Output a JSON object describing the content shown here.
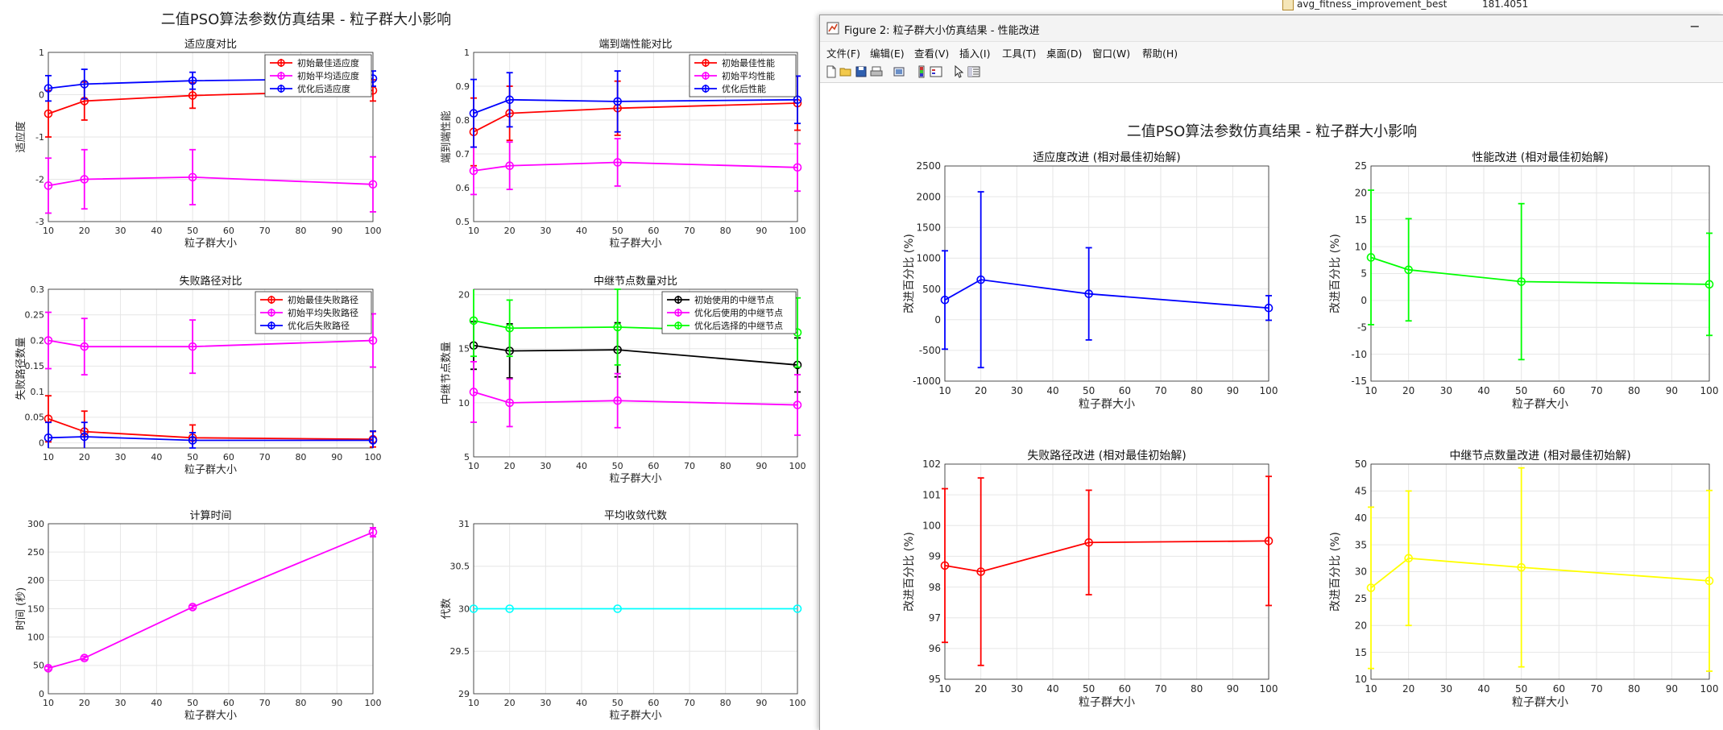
{
  "background_table": {
    "rows": [
      {
        "name": "avg_fitness_improvement_best",
        "value": "181.4051"
      }
    ]
  },
  "figure1": {
    "suptitle": "二值PSO算法参数仿真结果 - 粒子群大小影响",
    "xlabel": "粒子群大小",
    "panels": [
      {
        "title": "适应度对比",
        "ylabel": "适应度",
        "ylim": [
          -3,
          1
        ],
        "yticks": [
          -3,
          -2,
          -1,
          0,
          1
        ],
        "xticks": [
          10,
          20,
          30,
          40,
          50,
          60,
          70,
          80,
          90,
          100
        ],
        "legend": [
          "初始最佳适应度",
          "初始平均适应度",
          "优化后适应度"
        ],
        "series": [
          {
            "name": "初始最佳适应度",
            "color": "#ff0000",
            "x": [
              10,
              20,
              50,
              100
            ],
            "y": [
              -0.45,
              -0.15,
              -0.02,
              0.1
            ],
            "err": [
              0.55,
              0.45,
              0.3,
              0.25
            ]
          },
          {
            "name": "初始平均适应度",
            "color": "#ff00ff",
            "x": [
              10,
              20,
              50,
              100
            ],
            "y": [
              -2.15,
              -2.0,
              -1.95,
              -2.12
            ],
            "err": [
              0.65,
              0.7,
              0.65,
              0.65
            ]
          },
          {
            "name": "优化后适应度",
            "color": "#0000ff",
            "x": [
              10,
              20,
              50,
              100
            ],
            "y": [
              0.15,
              0.25,
              0.33,
              0.38
            ],
            "err": [
              0.3,
              0.35,
              0.2,
              0.18
            ]
          }
        ]
      },
      {
        "title": "端到端性能对比",
        "ylabel": "端到端性能",
        "ylim": [
          0.5,
          1
        ],
        "yticks": [
          0.5,
          0.6,
          0.7,
          0.8,
          0.9,
          1
        ],
        "xticks": [
          10,
          20,
          30,
          40,
          50,
          60,
          70,
          80,
          90,
          100
        ],
        "legend": [
          "初始最佳性能",
          "初始平均性能",
          "优化后性能"
        ],
        "series": [
          {
            "name": "初始最佳性能",
            "color": "#ff0000",
            "x": [
              10,
              20,
              50,
              100
            ],
            "y": [
              0.765,
              0.82,
              0.835,
              0.85
            ],
            "err": [
              0.1,
              0.08,
              0.08,
              0.08
            ]
          },
          {
            "name": "初始平均性能",
            "color": "#ff00ff",
            "x": [
              10,
              20,
              50,
              100
            ],
            "y": [
              0.65,
              0.665,
              0.675,
              0.66
            ],
            "err": [
              0.07,
              0.07,
              0.07,
              0.07
            ]
          },
          {
            "name": "优化后性能",
            "color": "#0000ff",
            "x": [
              10,
              20,
              50,
              100
            ],
            "y": [
              0.82,
              0.86,
              0.855,
              0.86
            ],
            "err": [
              0.1,
              0.08,
              0.09,
              0.07
            ]
          }
        ]
      },
      {
        "title": "失败路径对比",
        "ylabel": "失败路径数量",
        "ylim": [
          -0.01,
          0.3
        ],
        "yticks": [
          0,
          0.05,
          0.1,
          0.15,
          0.2,
          0.25,
          0.3
        ],
        "xticks": [
          10,
          20,
          30,
          40,
          50,
          60,
          70,
          80,
          90,
          100
        ],
        "legend": [
          "初始最佳失败路径",
          "初始平均失败路径",
          "优化后失败路径"
        ],
        "series": [
          {
            "name": "初始最佳失败路径",
            "color": "#ff0000",
            "x": [
              10,
              20,
              50,
              100
            ],
            "y": [
              0.047,
              0.022,
              0.01,
              0.007
            ],
            "err": [
              0.045,
              0.04,
              0.025,
              0.015
            ]
          },
          {
            "name": "初始平均失败路径",
            "color": "#ff00ff",
            "x": [
              10,
              20,
              50,
              100
            ],
            "y": [
              0.2,
              0.188,
              0.188,
              0.2
            ],
            "err": [
              0.055,
              0.055,
              0.052,
              0.052
            ]
          },
          {
            "name": "优化后失败路径",
            "color": "#0000ff",
            "x": [
              10,
              20,
              50,
              100
            ],
            "y": [
              0.01,
              0.012,
              0.005,
              0.005
            ],
            "err": [
              0.03,
              0.028,
              0.015,
              0.018
            ]
          }
        ]
      },
      {
        "title": "中继节点数量对比",
        "ylabel": "中继节点数量",
        "ylim": [
          5,
          20.5
        ],
        "yticks": [
          5,
          10,
          15,
          20
        ],
        "xticks": [
          10,
          20,
          30,
          40,
          50,
          60,
          70,
          80,
          90,
          100
        ],
        "legend": [
          "初始使用的中继节点",
          "优化后使用的中继节点",
          "优化后选择的中继节点"
        ],
        "series": [
          {
            "name": "初始使用的中继节点",
            "color": "#000000",
            "x": [
              10,
              20,
              50,
              100
            ],
            "y": [
              15.3,
              14.8,
              14.9,
              13.5
            ],
            "err": [
              2.2,
              2.5,
              2.5,
              2.5
            ]
          },
          {
            "name": "优化后使用的中继节点",
            "color": "#ff00ff",
            "x": [
              10,
              20,
              50,
              100
            ],
            "y": [
              11.0,
              10.0,
              10.2,
              9.8
            ],
            "err": [
              2.8,
              2.2,
              2.5,
              2.8
            ]
          },
          {
            "name": "优化后选择的中继节点",
            "color": "#00ff00",
            "x": [
              10,
              20,
              50,
              100
            ],
            "y": [
              17.6,
              16.9,
              17.0,
              16.5
            ],
            "err": [
              3.3,
              2.6,
              3.5,
              3.2
            ]
          }
        ]
      },
      {
        "title": "计算时间",
        "ylabel": "时间 (秒)",
        "ylim": [
          0,
          300
        ],
        "yticks": [
          0,
          50,
          100,
          150,
          200,
          250,
          300
        ],
        "xticks": [
          10,
          20,
          30,
          40,
          50,
          60,
          70,
          80,
          90,
          100
        ],
        "legend": [],
        "series": [
          {
            "name": "",
            "color": "#ff00ff",
            "x": [
              10,
              20,
              50,
              100
            ],
            "y": [
              45,
              63,
              153,
              285
            ],
            "err": [
              3,
              3,
              3,
              8
            ]
          }
        ]
      },
      {
        "title": "平均收敛代数",
        "ylabel": "代数",
        "ylim": [
          29,
          31
        ],
        "yticks": [
          29,
          29.5,
          30,
          30.5,
          31
        ],
        "xticks": [
          10,
          20,
          30,
          40,
          50,
          60,
          70,
          80,
          90,
          100
        ],
        "legend": [],
        "series": [
          {
            "name": "",
            "color": "#00ffff",
            "x": [
              10,
              20,
              50,
              100
            ],
            "y": [
              30,
              30,
              30,
              30
            ],
            "err": [
              0,
              0,
              0,
              0
            ]
          }
        ]
      }
    ]
  },
  "figure2": {
    "window_title": "Figure 2: 粒子群大小仿真结果 - 性能改进",
    "minimize_glyph": "−",
    "menu": [
      "文件(F)",
      "编辑(E)",
      "查看(V)",
      "插入(I)",
      "工具(T)",
      "桌面(D)",
      "窗口(W)",
      "帮助(H)"
    ],
    "toolbar_icons": [
      "new-file-icon",
      "open-folder-icon",
      "save-icon",
      "print-icon",
      "export-icon",
      "colorbar-icon",
      "legend-icon",
      "pointer-icon",
      "property-editor-icon"
    ],
    "suptitle": "二值PSO算法参数仿真结果 - 粒子群大小影响",
    "xlabel": "粒子群大小",
    "panels": [
      {
        "title": "适应度改进 (相对最佳初始解)",
        "ylabel": "改进百分比 (%)",
        "ylim": [
          -1000,
          2500
        ],
        "yticks": [
          -1000,
          -500,
          0,
          500,
          1000,
          1500,
          2000,
          2500
        ],
        "xticks": [
          10,
          20,
          30,
          40,
          50,
          60,
          70,
          80,
          90,
          100
        ],
        "series": [
          {
            "name": "",
            "color": "#0000ff",
            "x": [
              10,
              20,
              50,
              100
            ],
            "y": [
              320,
              650,
              420,
              190
            ],
            "err": [
              800,
              1430,
              750,
              200
            ]
          }
        ]
      },
      {
        "title": "性能改进 (相对最佳初始解)",
        "ylabel": "改进百分比 (%)",
        "ylim": [
          -15,
          25
        ],
        "yticks": [
          -15,
          -10,
          -5,
          0,
          5,
          10,
          15,
          20,
          25
        ],
        "xticks": [
          10,
          20,
          30,
          40,
          50,
          60,
          70,
          80,
          90,
          100
        ],
        "series": [
          {
            "name": "",
            "color": "#00ff00",
            "x": [
              10,
              20,
              50,
              100
            ],
            "y": [
              8.0,
              5.7,
              3.5,
              3.0
            ],
            "err": [
              12.5,
              9.5,
              14.5,
              9.5
            ]
          }
        ]
      },
      {
        "title": "失败路径改进 (相对最佳初始解)",
        "ylabel": "改进百分比 (%)",
        "ylim": [
          95,
          102
        ],
        "yticks": [
          95,
          96,
          97,
          98,
          99,
          100,
          101,
          102
        ],
        "xticks": [
          10,
          20,
          30,
          40,
          50,
          60,
          70,
          80,
          90,
          100
        ],
        "series": [
          {
            "name": "",
            "color": "#ff0000",
            "x": [
              10,
              20,
              50,
              100
            ],
            "y": [
              98.7,
              98.5,
              99.45,
              99.5
            ],
            "err": [
              2.5,
              3.05,
              1.7,
              2.1
            ]
          }
        ]
      },
      {
        "title": "中继节点数量改进 (相对最佳初始解)",
        "ylabel": "改进百分比 (%)",
        "ylim": [
          10,
          50
        ],
        "yticks": [
          10,
          15,
          20,
          25,
          30,
          35,
          40,
          45,
          50
        ],
        "xticks": [
          10,
          20,
          30,
          40,
          50,
          60,
          70,
          80,
          90,
          100
        ],
        "series": [
          {
            "name": "",
            "color": "#ffff00",
            "x": [
              10,
              20,
              50,
              100
            ],
            "y": [
              27.0,
              32.5,
              30.8,
              28.3
            ],
            "err": [
              15,
              12.5,
              18.5,
              16.8
            ]
          }
        ]
      }
    ]
  }
}
